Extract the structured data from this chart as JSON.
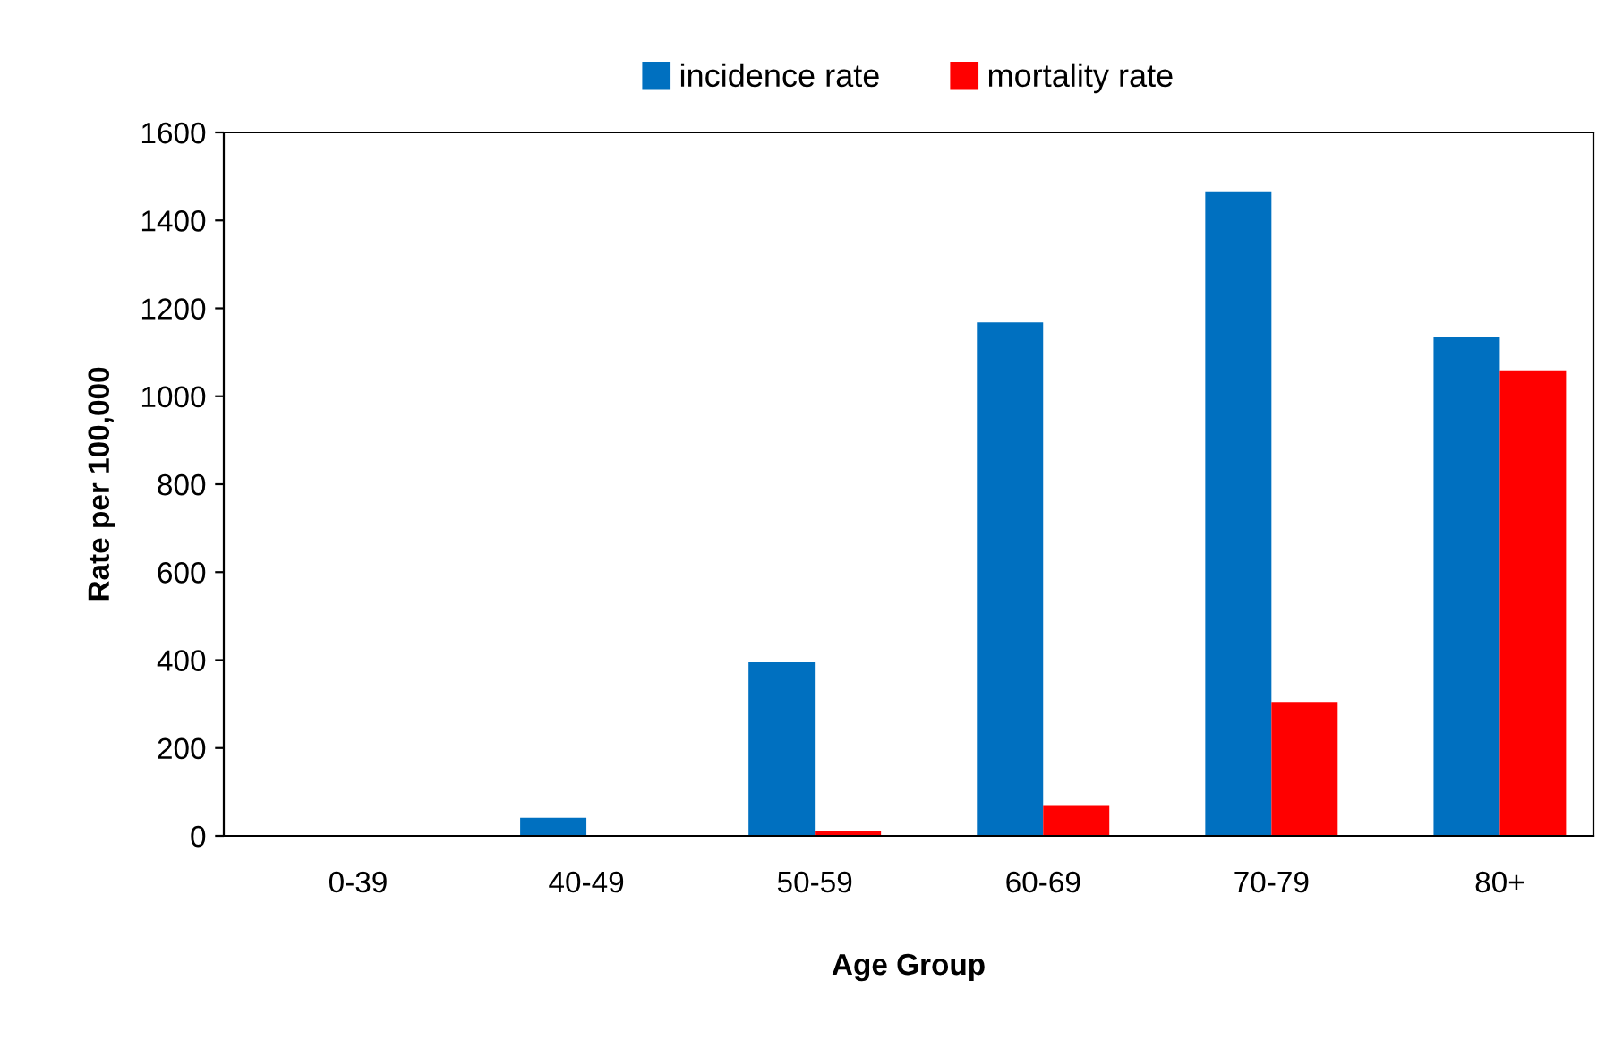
{
  "chart_data": {
    "type": "bar",
    "xlabel": "Age Group",
    "ylabel": "Rate per 100,000",
    "categories": [
      "0-39",
      "40-49",
      "50-59",
      "60-69",
      "70-79",
      "80+"
    ],
    "series": [
      {
        "name": "incidence rate",
        "color": "#0070c0",
        "values": [
          null,
          41,
          395,
          1168,
          1466,
          1136
        ]
      },
      {
        "name": "mortality rate",
        "color": "#ff0000",
        "values": [
          null,
          null,
          12,
          70,
          305,
          1059
        ]
      }
    ],
    "ylim": [
      0,
      1600
    ],
    "yticks": [
      0,
      200,
      400,
      600,
      800,
      1000,
      1200,
      1400,
      1600
    ],
    "grid": false,
    "legend": "top"
  }
}
